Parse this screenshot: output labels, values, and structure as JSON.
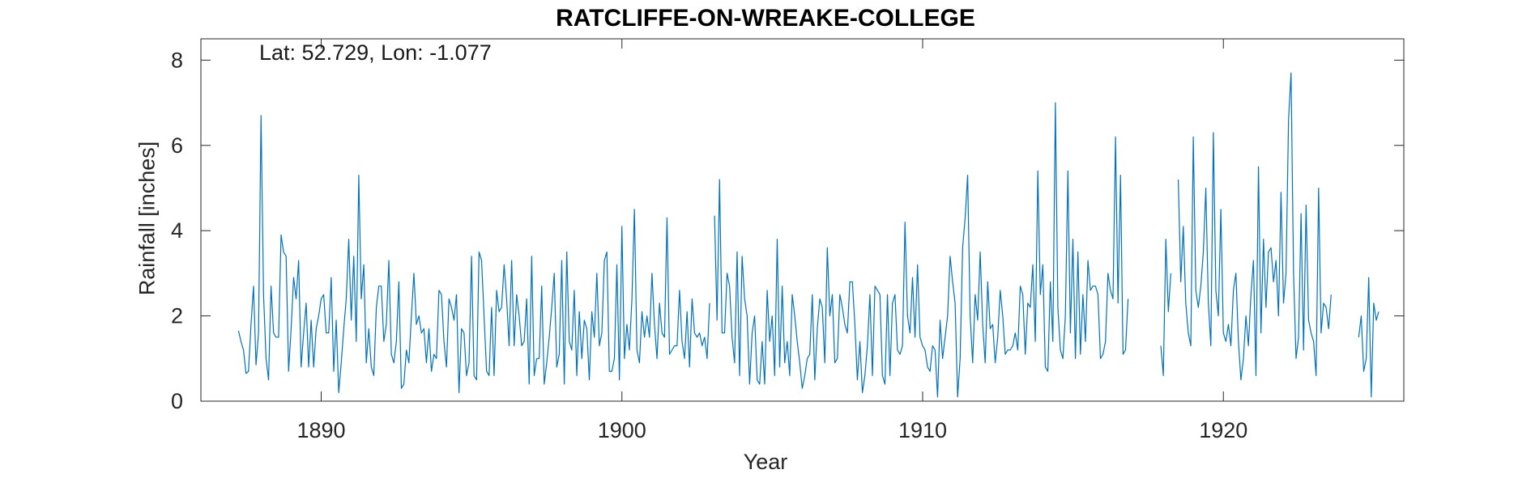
{
  "chart_data": {
    "type": "line",
    "title": "RATCLIFFE-ON-WREAKE-COLLEGE",
    "annotation": "Lat: 52.729, Lon: -1.077",
    "xlabel": "Year",
    "ylabel": "Rainfall [inches]",
    "xlim": [
      1886,
      1926
    ],
    "ylim": [
      0,
      8.5
    ],
    "x_ticks": [
      1890,
      1900,
      1910,
      1920
    ],
    "y_ticks": [
      0,
      2,
      4,
      6,
      8
    ],
    "grid": false,
    "series_color": "#0072BD",
    "series": [
      {
        "segments": [
          {
            "start_year": 1887.25,
            "step_years": 0.08333,
            "values": [
              1.65,
              1.4,
              1.2,
              0.65,
              0.7,
              1.8,
              2.7,
              0.85,
              1.6,
              6.7,
              2.5,
              1.0,
              0.5,
              2.7,
              1.6,
              1.5,
              1.5,
              3.9,
              3.5,
              3.4,
              0.7,
              1.7,
              2.9,
              2.4,
              3.3,
              0.8,
              1.6,
              2.3,
              0.8,
              1.9,
              0.8,
              1.7,
              2.0,
              2.4,
              2.5,
              1.6,
              1.6,
              2.9,
              0.7,
              1.9,
              0.2,
              0.9,
              1.7,
              2.4,
              3.8,
              1.9,
              3.4,
              1.4,
              5.3,
              2.4,
              3.2,
              0.9,
              1.7,
              0.8,
              0.6,
              2.2,
              2.7,
              2.7,
              1.4,
              1.8,
              3.3,
              1.1,
              0.9,
              1.4,
              2.8,
              0.3,
              0.4,
              1.2,
              0.9,
              2.0,
              3.0,
              1.8,
              2.0,
              1.6,
              1.7,
              0.9,
              1.7,
              0.7,
              1.1,
              1.0,
              2.6,
              2.5,
              1.4,
              0.8,
              2.4,
              2.2,
              1.9,
              2.5,
              0.2,
              1.7,
              1.6,
              0.6,
              0.9,
              3.4,
              0.6,
              0.5,
              3.5,
              3.3,
              2.0,
              0.7,
              0.6,
              2.2,
              0.6,
              2.6,
              2.1,
              2.2,
              3.2,
              2.4,
              1.3,
              3.3,
              1.3,
              2.5,
              2.0,
              1.3,
              1.4,
              2.4,
              0.4,
              3.4,
              0.6,
              1.0,
              1.0,
              2.7,
              0.4,
              0.9,
              1.5,
              2.2,
              3.0,
              0.8,
              1.1,
              3.3,
              0.4,
              3.5,
              1.4,
              1.2,
              2.6,
              0.6,
              2.1,
              1.0,
              1.9,
              1.7,
              0.5,
              2.1,
              1.5,
              3.0,
              1.3,
              1.6,
              3.3,
              3.5,
              0.7,
              0.7,
              1.0,
              3.2,
              0.5,
              4.1,
              1.0,
              1.8,
              1.2,
              2.4,
              4.5,
              1.2,
              0.9,
              2.1,
              1.5,
              2.0,
              1.5,
              3.0,
              1.8,
              1.0,
              2.3,
              1.6,
              1.5,
              4.3,
              1.1,
              1.2,
              1.3,
              1.3,
              2.6,
              1.4,
              1.0,
              2.1,
              0.8,
              2.4,
              1.6,
              1.5,
              1.6,
              1.3,
              1.5,
              1.0,
              2.3
            ]
          },
          {
            "start_year": 1903.08,
            "step_years": 0.08333,
            "values": [
              4.35,
              1.9,
              5.2,
              1.6,
              1.6,
              3.0,
              2.7,
              1.5,
              0.9,
              3.5,
              0.6,
              3.4,
              2.4,
              2.0,
              0.4,
              1.6,
              2.0,
              0.5,
              0.4,
              1.4,
              0.4,
              2.6,
              1.4,
              2.0,
              0.6,
              3.8,
              0.8,
              2.7,
              0.9,
              1.4,
              0.6,
              2.5,
              2.0,
              1.4,
              0.9,
              0.3,
              0.6,
              1.0,
              1.1,
              2.5,
              0.5,
              1.7,
              2.4,
              2.2,
              0.9,
              3.6,
              2.0,
              2.5,
              0.9,
              1.0,
              2.5,
              2.2,
              1.8,
              1.6,
              2.8,
              2.8,
              1.8,
              0.5,
              1.4,
              0.2,
              0.6,
              1.3,
              2.5,
              0.6,
              2.7,
              2.6,
              2.5,
              0.6,
              0.4,
              2.5,
              0.6,
              2.3,
              2.5,
              1.2,
              1.1,
              1.3,
              4.2,
              2.0,
              1.6,
              2.9,
              1.5,
              3.2,
              1.5,
              1.3,
              1.2,
              0.8,
              0.7,
              1.3,
              1.2,
              0.1,
              1.9,
              1.0,
              1.5,
              2.0,
              3.4,
              2.8,
              2.3,
              0.1,
              1.0,
              3.6,
              4.3,
              5.3,
              2.0,
              0.9,
              2.5,
              1.9,
              3.5,
              1.8,
              0.9,
              2.8,
              1.7,
              1.8,
              0.9,
              1.5,
              2.6,
              2.0,
              1.1,
              1.2,
              1.2,
              1.3,
              1.6,
              1.2,
              2.7,
              2.5,
              1.1,
              2.3,
              2.2,
              3.2,
              1.4,
              5.4,
              2.5,
              3.2,
              0.8,
              0.7,
              2.8,
              1.4,
              7.0,
              2.2,
              1.2,
              1.0,
              2.0,
              5.4,
              1.6,
              3.8,
              1.0,
              3.5,
              1.1,
              2.5,
              1.4,
              3.3,
              2.6,
              2.7,
              2.7,
              2.5,
              1.0,
              1.1,
              1.4,
              3.0,
              2.6,
              2.4,
              6.2,
              2.3,
              5.3,
              1.1,
              1.2,
              2.4
            ]
          },
          {
            "start_year": 1917.92,
            "step_years": 0.08333,
            "values": [
              1.3,
              0.6,
              3.8,
              2.1,
              3.0
            ]
          },
          {
            "start_year": 1918.5,
            "step_years": 0.08333,
            "values": [
              5.2,
              2.8,
              4.1,
              2.3,
              1.6,
              1.3,
              6.2,
              2.6,
              2.2,
              2.7,
              3.5,
              5.0,
              2.3,
              1.3,
              6.3,
              2.6,
              2.0,
              4.5,
              1.6,
              1.4,
              1.8,
              1.3,
              2.6,
              3.0,
              1.4,
              0.5,
              1.0,
              2.0,
              1.3,
              2.5,
              3.3,
              0.6,
              5.5,
              1.6,
              3.8,
              2.2,
              3.5,
              3.6,
              2.8,
              3.3,
              2.0,
              4.9,
              2.3,
              3.0,
              6.6,
              7.7,
              3.0,
              1.0,
              1.5,
              4.4,
              1.2,
              4.6,
              1.9,
              1.6,
              1.4,
              0.6,
              5.0,
              1.6,
              2.3,
              2.2,
              1.7,
              2.5
            ]
          },
          {
            "start_year": 1924.5,
            "step_years": 0.08333,
            "values": [
              1.5,
              2.0,
              0.7,
              1.0,
              2.9,
              0.1,
              2.3,
              1.9,
              2.1
            ]
          }
        ]
      }
    ]
  }
}
